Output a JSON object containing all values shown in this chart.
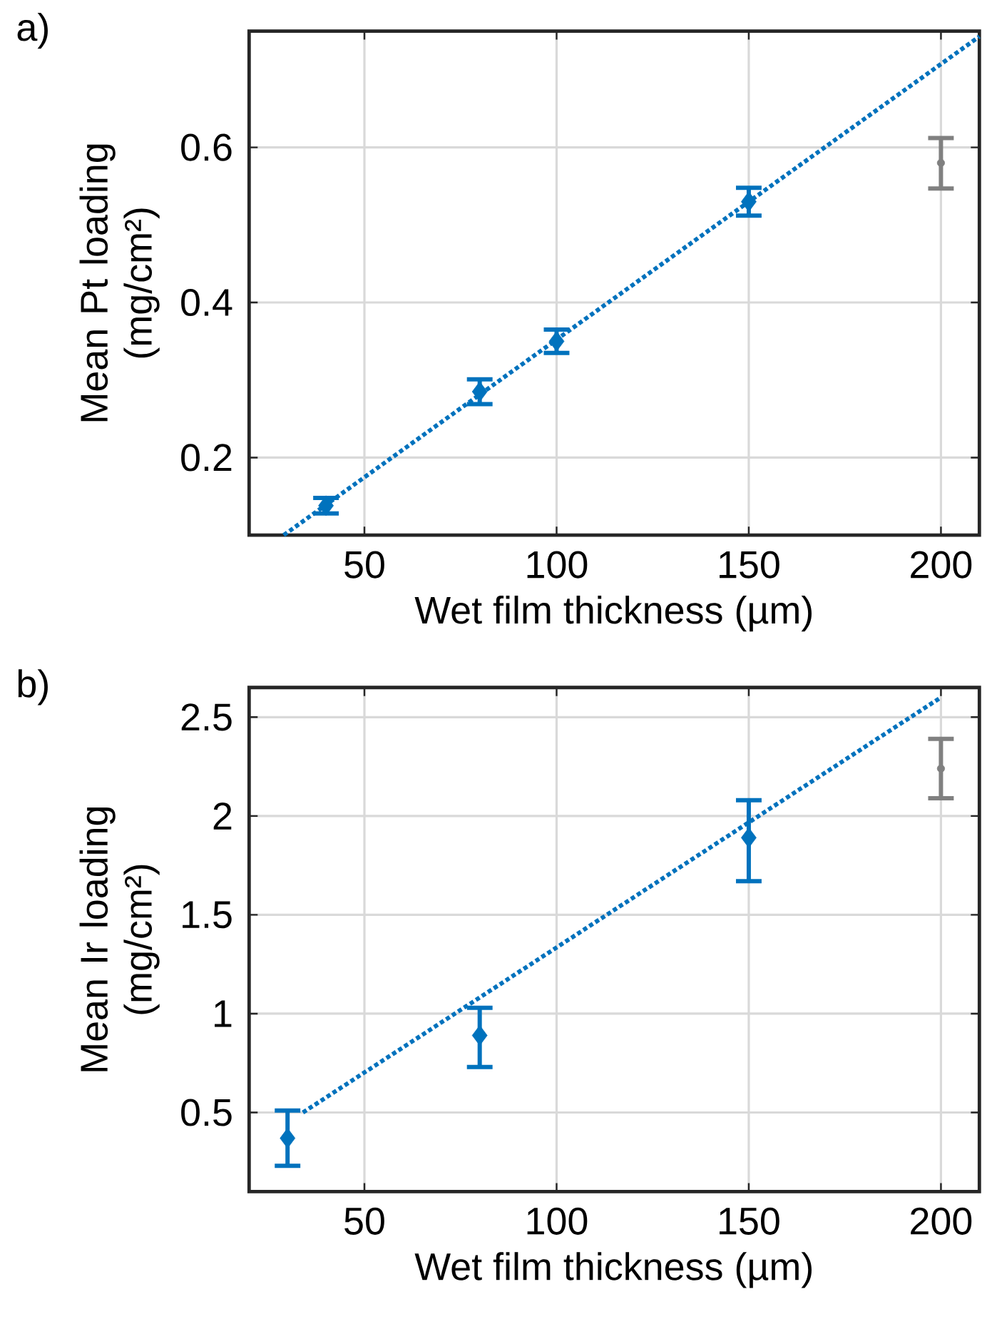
{
  "chart_data": [
    {
      "type": "scatter",
      "xlabel": "Wet film thickness (µm)",
      "ylabel": "Mean Pt loading (mg/cm²)",
      "annotations": [
        "a)"
      ],
      "xlim": [
        20,
        210
      ],
      "ylim": [
        0.1,
        0.75
      ],
      "xticks": [
        50,
        100,
        150,
        200
      ],
      "yticks": [
        0.2,
        0.4,
        0.6
      ],
      "grid": true,
      "series": [
        {
          "color": "#0072bd",
          "marker": "diamond",
          "x": [
            40,
            80,
            100,
            150
          ],
          "values": [
            0.138,
            0.285,
            0.35,
            0.53
          ],
          "errors": [
            [
              0.128,
              0.148
            ],
            [
              0.269,
              0.301
            ],
            [
              0.335,
              0.365
            ],
            [
              0.512,
              0.548
            ]
          ]
        },
        {
          "color": "#808080",
          "marker": "circle",
          "x": [
            200
          ],
          "values": [
            0.58
          ],
          "errors": [
            [
              0.547,
              0.612
            ]
          ]
        },
        {
          "type": "line",
          "color": "#0072bd",
          "line_style": "dotted",
          "marker": "none",
          "x": [
            29,
            210
          ],
          "values": [
            0.1,
            0.743
          ]
        }
      ]
    },
    {
      "type": "scatter",
      "xlabel": "Wet film thickness (µm)",
      "ylabel": "Mean Ir loading (mg/cm²)",
      "annotations": [
        "b)"
      ],
      "xlim": [
        20,
        210
      ],
      "ylim": [
        0.1,
        2.65
      ],
      "xticks": [
        50,
        100,
        150,
        200
      ],
      "yticks": [
        {
          "value": 0.5,
          "label": "0.5"
        },
        {
          "value": 1,
          "label": "1"
        },
        {
          "value": 1.5,
          "label": "1.5"
        },
        {
          "value": 2,
          "label": "2"
        },
        {
          "value": 2.5,
          "label": "2.5"
        }
      ],
      "grid": true,
      "series": [
        {
          "color": "#0072bd",
          "marker": "diamond",
          "x": [
            30,
            80,
            150
          ],
          "values": [
            0.37,
            0.89,
            1.89
          ],
          "errors": [
            [
              0.23,
              0.51
            ],
            [
              0.73,
              1.03
            ],
            [
              1.67,
              2.08
            ]
          ]
        },
        {
          "color": "#808080",
          "marker": "circle",
          "x": [
            200
          ],
          "values": [
            2.24
          ],
          "errors": [
            [
              2.09,
              2.39
            ]
          ]
        },
        {
          "type": "line",
          "color": "#0072bd",
          "line_style": "dotted",
          "marker": "none",
          "x": [
            34,
            200
          ],
          "values": [
            0.5,
            2.6
          ]
        }
      ]
    }
  ]
}
